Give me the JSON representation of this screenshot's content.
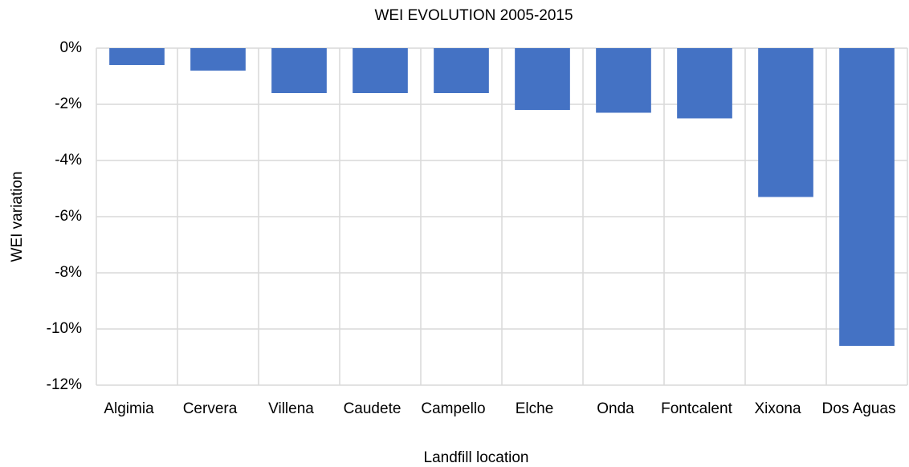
{
  "chart_data": {
    "type": "bar",
    "title": "WEI EVOLUTION 2005-2015",
    "x_label": "Landfill location",
    "y_label": "WEI variation",
    "categories": [
      "Algimia",
      "Cervera",
      "Villena",
      "Caudete",
      "Campello",
      "Elche",
      "Onda",
      "Fontcalent",
      "Xixona",
      "Dos Aguas"
    ],
    "values": [
      -0.6,
      -0.8,
      -1.6,
      -1.6,
      -1.6,
      -2.2,
      -2.3,
      -2.5,
      -5.3,
      -10.6
    ],
    "color": "#4472c4",
    "ylim": [
      -12,
      0
    ],
    "yticks": [
      {
        "value": 0,
        "label": "0%"
      },
      {
        "value": -2,
        "label": "-2%"
      },
      {
        "value": -4,
        "label": "-4%"
      },
      {
        "value": -6,
        "label": "-6%"
      },
      {
        "value": -8,
        "label": "-8%"
      },
      {
        "value": -10,
        "label": "-10%"
      },
      {
        "value": -12,
        "label": "-12%"
      }
    ],
    "grid": true
  }
}
